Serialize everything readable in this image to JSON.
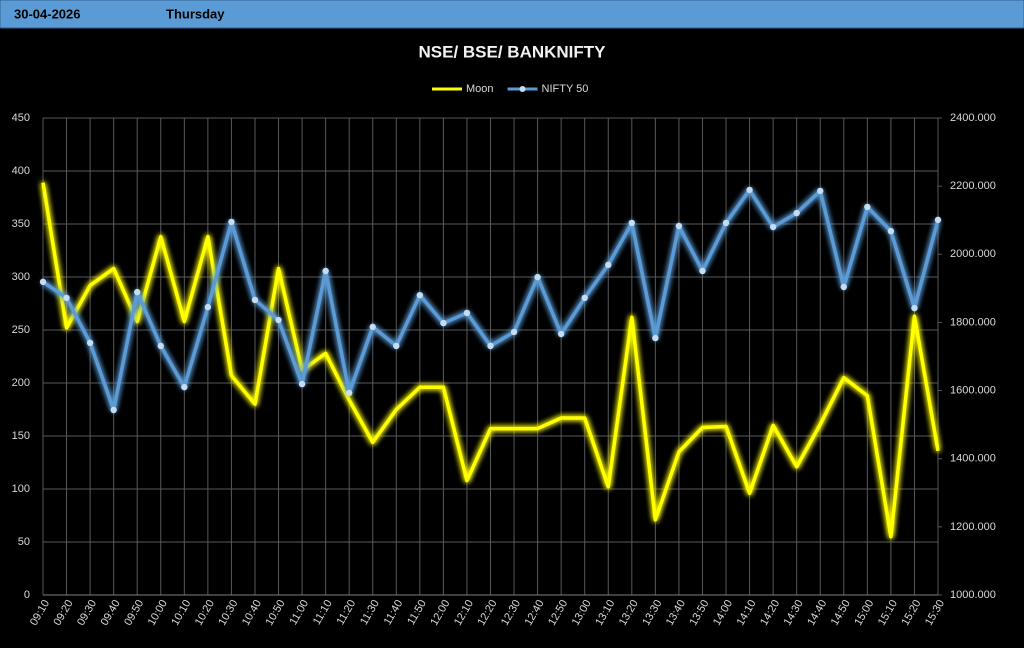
{
  "header": {
    "date": "30-04-2026",
    "day": "Thursday"
  },
  "chart_data": {
    "type": "line",
    "title": "NSE/ BSE/ BANKNIFTY",
    "grid": true,
    "legend": "top",
    "categories": [
      "09:10",
      "09:20",
      "09:30",
      "09:40",
      "09:50",
      "10:00",
      "10:10",
      "10:20",
      "10:30",
      "10:40",
      "10:50",
      "11:00",
      "11:10",
      "11:20",
      "11:30",
      "11:40",
      "11:50",
      "12:00",
      "12:10",
      "12:20",
      "12:30",
      "12:40",
      "12:50",
      "13:00",
      "13:10",
      "13:20",
      "13:30",
      "13:40",
      "13:50",
      "14:00",
      "14:10",
      "14:20",
      "14:30",
      "14:40",
      "14:50",
      "15:00",
      "15:10",
      "15:20",
      "15:30"
    ],
    "series": [
      {
        "name": "Moon",
        "color": "#ffff00",
        "axis": "y",
        "markers": false,
        "values": [
          389,
          252,
          292,
          308,
          258,
          338,
          258,
          338,
          207,
          180,
          308,
          212,
          228,
          184,
          144,
          175,
          196,
          196,
          108,
          157,
          157,
          157,
          167,
          167,
          102,
          262,
          71,
          135,
          158,
          159,
          96,
          160,
          121,
          161,
          205,
          188,
          55,
          263,
          136
        ]
      },
      {
        "name": "NIFTY 50",
        "color": "#5b9bd5",
        "axis": "y2",
        "markers": true,
        "values": [
          1919,
          1872,
          1740,
          1543,
          1889,
          1731,
          1610,
          1845,
          2095,
          1866,
          1807,
          1619,
          1951,
          1593,
          1787,
          1731,
          1880,
          1798,
          1828,
          1731,
          1772,
          1933,
          1766,
          1872,
          1969,
          2092,
          1754,
          2083,
          1951,
          2092,
          2189,
          2080,
          2121,
          2186,
          1904,
          2139,
          2068,
          1842,
          2101
        ]
      }
    ],
    "ylim": [
      0,
      450
    ],
    "yticks": [
      0,
      50,
      100,
      150,
      200,
      250,
      300,
      350,
      400,
      450
    ],
    "y2lim": [
      1000,
      2400
    ],
    "y2ticks": [
      {
        "value": 1000,
        "label": "1000.000"
      },
      {
        "value": 1200,
        "label": "1200.000"
      },
      {
        "value": 1400,
        "label": "1400.000"
      },
      {
        "value": 1600,
        "label": "1600.000"
      },
      {
        "value": 1800,
        "label": "1800.000"
      },
      {
        "value": 2000,
        "label": "2000.000"
      },
      {
        "value": 2200,
        "label": "2200.000"
      },
      {
        "value": 2400,
        "label": "2400.000"
      }
    ]
  }
}
